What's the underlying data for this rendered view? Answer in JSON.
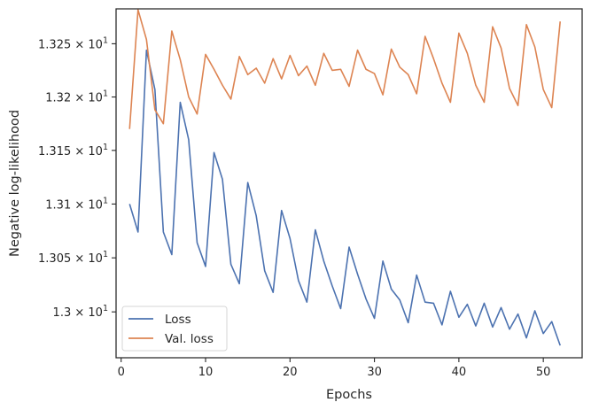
{
  "chart_data": {
    "type": "line",
    "title": "",
    "xlabel": "Epochs",
    "ylabel": "Negative log-likelihood",
    "xlim": [
      -0.6,
      54.6
    ],
    "ylim": [
      12.9577,
      13.2829
    ],
    "yscale": "log",
    "xticks": [
      0,
      10,
      20,
      30,
      40,
      50
    ],
    "xtick_labels": [
      "0",
      "10",
      "20",
      "30",
      "40",
      "50"
    ],
    "yticks": [
      13.0,
      13.05,
      13.1,
      13.15,
      13.2,
      13.25
    ],
    "ytick_labels": [
      {
        "mantissa": "1.3",
        "base": "10",
        "exp": "1"
      },
      {
        "mantissa": "1.305",
        "base": "10",
        "exp": "1"
      },
      {
        "mantissa": "1.31",
        "base": "10",
        "exp": "1"
      },
      {
        "mantissa": "1.315",
        "base": "10",
        "exp": "1"
      },
      {
        "mantissa": "1.32",
        "base": "10",
        "exp": "1"
      },
      {
        "mantissa": "1.325",
        "base": "10",
        "exp": "1"
      }
    ],
    "grid": false,
    "legend": "lower-left",
    "x": [
      1,
      2,
      3,
      4,
      5,
      6,
      7,
      8,
      9,
      10,
      11,
      12,
      13,
      14,
      15,
      16,
      17,
      18,
      19,
      20,
      21,
      22,
      23,
      24,
      25,
      26,
      27,
      28,
      29,
      30,
      31,
      32,
      33,
      34,
      35,
      36,
      37,
      38,
      39,
      40,
      41,
      42,
      43,
      44,
      45,
      46,
      47,
      48,
      49,
      50,
      51,
      52
    ],
    "series": [
      {
        "name": "Loss",
        "color": "#4c72b0",
        "values": [
          13.1,
          13.074,
          13.244,
          13.207,
          13.074,
          13.053,
          13.195,
          13.16,
          13.064,
          13.042,
          13.148,
          13.123,
          13.044,
          13.026,
          13.12,
          13.089,
          13.038,
          13.018,
          13.094,
          13.068,
          13.029,
          13.009,
          13.076,
          13.047,
          13.024,
          13.003,
          13.06,
          13.035,
          13.012,
          12.994,
          13.047,
          13.021,
          13.011,
          12.99,
          13.034,
          13.009,
          13.008,
          12.988,
          13.019,
          12.995,
          13.007,
          12.987,
          13.008,
          12.986,
          13.004,
          12.984,
          12.998,
          12.976,
          13.001,
          12.98,
          12.991,
          12.969
        ]
      },
      {
        "name": "Val. loss",
        "color": "#dd8452",
        "values": [
          13.17,
          13.282,
          13.254,
          13.188,
          13.175,
          13.262,
          13.235,
          13.2,
          13.184,
          13.24,
          13.226,
          13.211,
          13.198,
          13.238,
          13.221,
          13.227,
          13.213,
          13.236,
          13.217,
          13.239,
          13.22,
          13.229,
          13.211,
          13.241,
          13.225,
          13.226,
          13.21,
          13.244,
          13.226,
          13.222,
          13.202,
          13.245,
          13.228,
          13.221,
          13.203,
          13.257,
          13.236,
          13.213,
          13.195,
          13.26,
          13.241,
          13.211,
          13.195,
          13.266,
          13.246,
          13.208,
          13.192,
          13.268,
          13.247,
          13.207,
          13.19,
          13.271
        ]
      }
    ]
  }
}
